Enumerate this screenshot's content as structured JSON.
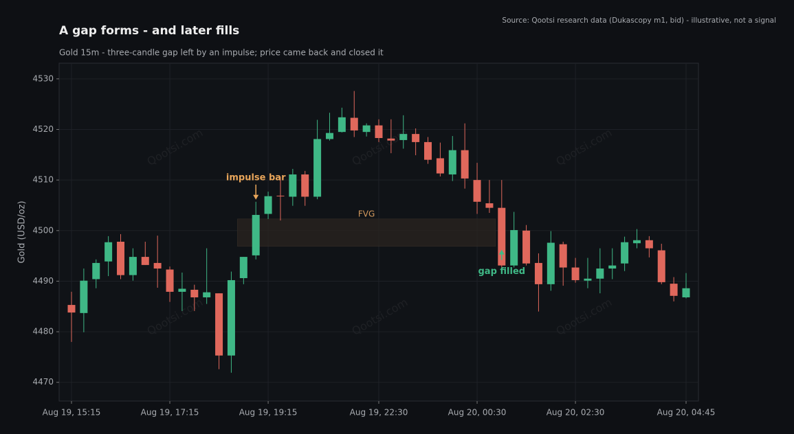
{
  "chart_data": {
    "type": "candlestick",
    "title": "A gap forms - and later fills",
    "subtitle": "Gold 15m - three-candle gap left by an impulse; price came back and closed it",
    "source": "Source: Qootsi research data (Dukascopy m1, bid) - illustrative, not a signal",
    "y_label": "Gold (USD/oz)",
    "watermark": "Qootsi.com",
    "up_color": "#3fb886",
    "down_color": "#e0685c",
    "grid": true,
    "ylim": [
      4466.3,
      4533.1
    ],
    "yticks": [
      4470,
      4480,
      4490,
      4500,
      4510,
      4520,
      4530
    ],
    "categories": [
      "Aug 19, 15:15",
      null,
      null,
      null,
      null,
      null,
      null,
      null,
      "Aug 19, 17:15",
      null,
      null,
      null,
      null,
      null,
      null,
      null,
      "Aug 19, 19:15",
      null,
      null,
      null,
      null,
      null,
      null,
      null,
      null,
      "Aug 19, 22:30",
      null,
      null,
      null,
      null,
      null,
      null,
      null,
      "Aug 20, 00:30",
      null,
      null,
      null,
      null,
      null,
      null,
      null,
      "Aug 20, 02:30",
      null,
      null,
      null,
      null,
      null,
      null,
      null,
      null,
      "Aug 20, 04:45"
    ],
    "open": [
      4485.3,
      4483.7,
      4490.4,
      4493.9,
      4497.8,
      4491.2,
      4494.8,
      4493.6,
      4492.3,
      4487.9,
      4488.3,
      4486.8,
      4487.6,
      4475.3,
      4490.6,
      4495.1,
      4503.3,
      4506.9,
      4506.7,
      4511.1,
      4506.7,
      4518.1,
      4519.5,
      4522.3,
      4519.5,
      4520.8,
      4518.2,
      4517.9,
      4519.1,
      4517.5,
      4514.3,
      4511.1,
      4515.9,
      4510.0,
      4505.4,
      4504.5,
      4493.1,
      4500.0,
      4493.6,
      4489.4,
      4497.3,
      4492.7,
      4490.1,
      4490.5,
      4492.5,
      4493.5,
      4497.5,
      4498.1,
      4496.1,
      4489.5,
      4486.8
    ],
    "high": [
      4487.9,
      4492.5,
      4494.3,
      4498.9,
      4499.3,
      4496.5,
      4497.8,
      4499.0,
      4492.9,
      4491.7,
      4489.3,
      4496.5,
      4487.6,
      4491.9,
      4494.8,
      4505.7,
      4507.7,
      4510.6,
      4512.2,
      4511.8,
      4521.9,
      4523.3,
      4524.3,
      4527.6,
      4521.2,
      4522.0,
      4522.0,
      4522.8,
      4520.2,
      4518.5,
      4517.4,
      4518.7,
      4521.2,
      4513.4,
      4510.0,
      4510.0,
      4503.7,
      4501.1,
      4495.5,
      4499.9,
      4497.8,
      4494.6,
      4494.6,
      4496.5,
      4496.5,
      4498.8,
      4500.3,
      4498.9,
      4497.4,
      4490.8,
      4491.6
    ],
    "low": [
      4478.0,
      4479.9,
      4488.6,
      4491.0,
      4490.4,
      4490.1,
      4493.2,
      4488.7,
      4485.9,
      4484.1,
      4484.1,
      4485.5,
      4472.6,
      4471.9,
      4489.4,
      4494.3,
      4502.3,
      4502.0,
      4504.9,
      4504.9,
      4506.2,
      4517.8,
      4519.4,
      4518.5,
      4518.6,
      4517.5,
      4515.3,
      4516.2,
      4514.9,
      4513.2,
      4510.7,
      4509.8,
      4508.3,
      4503.3,
      4503.5,
      4492.7,
      4492.7,
      4493.1,
      4484.0,
      4488.1,
      4489.1,
      4489.7,
      4488.6,
      4487.6,
      4490.4,
      4492.0,
      4496.5,
      4494.7,
      4489.4,
      4486.0,
      4486.6
    ],
    "close": [
      4483.8,
      4490.1,
      4493.6,
      4497.7,
      4491.2,
      4494.8,
      4493.2,
      4492.5,
      4487.9,
      4488.5,
      4486.8,
      4487.8,
      4475.3,
      4490.2,
      4494.8,
      4503.1,
      4506.8,
      4506.8,
      4511.1,
      4506.7,
      4518.1,
      4519.3,
      4522.4,
      4519.8,
      4520.8,
      4518.3,
      4517.8,
      4519.1,
      4517.5,
      4514.0,
      4511.3,
      4515.9,
      4510.3,
      4505.7,
      4504.5,
      4493.1,
      4500.1,
      4493.5,
      4489.4,
      4497.6,
      4492.7,
      4490.2,
      4490.5,
      4492.5,
      4493.1,
      4497.7,
      4498.1,
      4496.5,
      4489.8,
      4487.1,
      4488.6
    ],
    "fvg": {
      "label": "FVG",
      "top": 4502.3,
      "bottom": 4496.9,
      "start_index": 14,
      "end_index": 35
    },
    "annotations": [
      {
        "text": "impulse bar",
        "index": 15,
        "color": "#e8a55a"
      },
      {
        "text": "gap filled",
        "index": 35,
        "color": "#3fb886"
      }
    ]
  }
}
